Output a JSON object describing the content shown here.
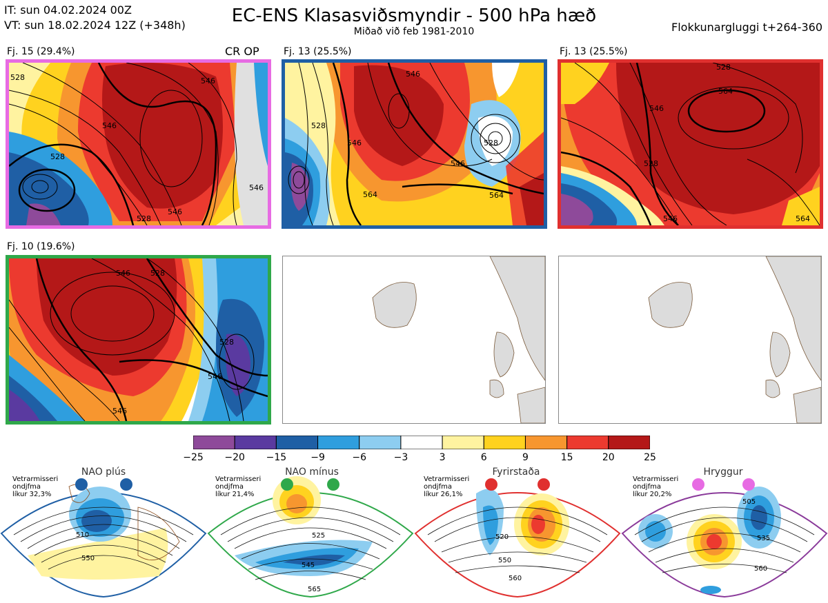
{
  "header": {
    "it_line": "IT: sun 04.02.2024 00Z",
    "vt_line": "VT: sun 18.02.2024 12Z  (+348h)",
    "title": "EC-ENS Klasasviðsmyndir - 500 hPa hæð",
    "subtitle": "Miðað við feb 1981-2010",
    "window": "Flokkunargluggi t+264-360"
  },
  "panels": [
    {
      "label": "Fj. 15 (29.4%)",
      "tag": "CR OP",
      "border": "#e76be3",
      "contours": [
        "528",
        "546",
        "546",
        "528",
        "546",
        "546",
        "528"
      ]
    },
    {
      "label": "Fj. 13 (25.5%)",
      "tag": "",
      "border": "#1f5fa5",
      "contours": [
        "546",
        "528",
        "546",
        "528",
        "564",
        "564",
        "546"
      ]
    },
    {
      "label": "Fj. 13 (25.5%)",
      "tag": "",
      "border": "#e0302f",
      "contours": [
        "528",
        "564",
        "546",
        "528",
        "546",
        "564"
      ]
    },
    {
      "label": "Fj. 10 (19.6%)",
      "tag": "",
      "border": "#2fa84a",
      "contours": [
        "546",
        "528",
        "546",
        "546",
        "528"
      ]
    }
  ],
  "colorbar": {
    "ticks": [
      "−25",
      "−20",
      "−15",
      "−9",
      "−6",
      "−3",
      "3",
      "6",
      "9",
      "15",
      "20",
      "25"
    ],
    "colors": [
      "#8e4a9a",
      "#5a3aa0",
      "#1f5fa5",
      "#2f9ede",
      "#8dcdf0",
      "#ffffff",
      "#fff3a0",
      "#ffd21f",
      "#f7962f",
      "#ec3a2f",
      "#b41818"
    ]
  },
  "regimes": [
    {
      "name": "NAO plús",
      "note": [
        "Vetrarmisseri",
        "ondjfma",
        "líkur 32,3%"
      ],
      "color": "#1f5fa5",
      "border": "#1f5fa5",
      "contours": [
        "510",
        "550"
      ]
    },
    {
      "name": "NAO mínus",
      "note": [
        "Vetrarmisseri",
        "ondjfma",
        "líkur 21,4%"
      ],
      "color": "#2fa84a",
      "border": "#2fa84a",
      "contours": [
        "525",
        "545",
        "565"
      ]
    },
    {
      "name": "Fyrirstaða",
      "note": [
        "Vetrarmisseri",
        "ondjfma",
        "líkur 26,1%"
      ],
      "color": "#e0302f",
      "border": "#e0302f",
      "contours": [
        "520",
        "550",
        "560"
      ]
    },
    {
      "name": "Hryggur",
      "note": [
        "Vetrarmisseri",
        "ondjfma",
        "líkur 20,2%"
      ],
      "color": "#e76be3",
      "border": "#8a3a9a",
      "contours": [
        "505",
        "535",
        "560"
      ]
    }
  ]
}
